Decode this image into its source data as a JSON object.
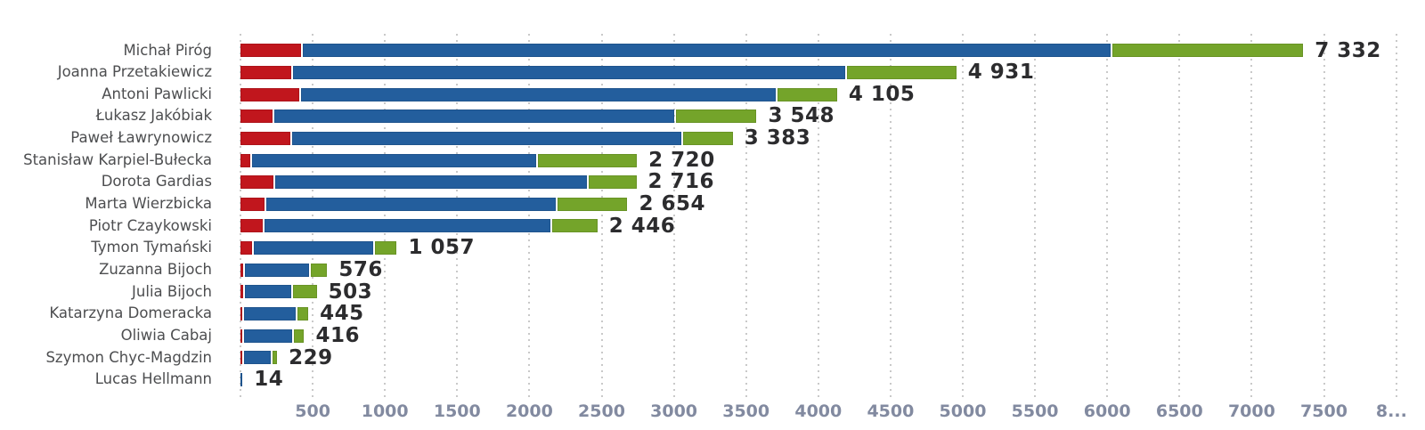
{
  "chart_data": {
    "type": "bar",
    "orientation": "horizontal",
    "stacked": true,
    "title": "",
    "xlabel": "",
    "ylabel": "",
    "xlim": [
      0,
      8000
    ],
    "grid": "dotted vertical gridlines every 500 units",
    "legend": "none",
    "series_colors": {
      "red": "#c1161d",
      "blue": "#235e9d",
      "green": "#74a42a"
    },
    "series_order": [
      "red",
      "blue",
      "green"
    ],
    "x_ticks": [
      {
        "value": 500,
        "label": "500"
      },
      {
        "value": 1000,
        "label": "1000"
      },
      {
        "value": 1500,
        "label": "1500"
      },
      {
        "value": 2000,
        "label": "2000"
      },
      {
        "value": 2500,
        "label": "2500"
      },
      {
        "value": 3000,
        "label": "3000"
      },
      {
        "value": 3500,
        "label": "3500"
      },
      {
        "value": 4000,
        "label": "4000"
      },
      {
        "value": 4500,
        "label": "4500"
      },
      {
        "value": 5000,
        "label": "5000"
      },
      {
        "value": 5500,
        "label": "5500"
      },
      {
        "value": 6000,
        "label": "6000"
      },
      {
        "value": 6500,
        "label": "6500"
      },
      {
        "value": 7000,
        "label": "7000"
      },
      {
        "value": 7500,
        "label": "7500"
      },
      {
        "value": 8000,
        "label": "8..."
      }
    ],
    "rows": [
      {
        "name": "Michał Piróg",
        "red": 420,
        "blue": 5589,
        "green": 1323,
        "total": 7332,
        "total_label": "7 332"
      },
      {
        "name": "Joanna Przetakiewicz",
        "red": 352,
        "blue": 3820,
        "green": 759,
        "total": 4931,
        "total_label": "4 931"
      },
      {
        "name": "Antoni Pawlicki",
        "red": 406,
        "blue": 3287,
        "green": 412,
        "total": 4105,
        "total_label": "4 105"
      },
      {
        "name": "Łukasz Jakóbiak",
        "red": 225,
        "blue": 2765,
        "green": 558,
        "total": 3548,
        "total_label": "3 548"
      },
      {
        "name": "Paweł Ławrynowicz",
        "red": 348,
        "blue": 2693,
        "green": 342,
        "total": 3383,
        "total_label": "3 383"
      },
      {
        "name": "Stanisław Karpiel-Bułecka",
        "red": 70,
        "blue": 1964,
        "green": 686,
        "total": 2720,
        "total_label": "2 720"
      },
      {
        "name": "Dorota Gardias",
        "red": 230,
        "blue": 2153,
        "green": 333,
        "total": 2716,
        "total_label": "2 716"
      },
      {
        "name": "Marta Wierzbicka",
        "red": 164,
        "blue": 2007,
        "green": 483,
        "total": 2654,
        "total_label": "2 654"
      },
      {
        "name": "Piotr Czaykowski",
        "red": 154,
        "blue": 1979,
        "green": 313,
        "total": 2446,
        "total_label": "2 446"
      },
      {
        "name": "Tymon Tymański",
        "red": 82,
        "blue": 827,
        "green": 148,
        "total": 1057,
        "total_label": "1 057"
      },
      {
        "name": "Zuzanna Bijoch",
        "red": 20,
        "blue": 445,
        "green": 111,
        "total": 576,
        "total_label": "576"
      },
      {
        "name": "Julia Bijoch",
        "red": 18,
        "blue": 319,
        "green": 166,
        "total": 503,
        "total_label": "503"
      },
      {
        "name": "Katarzyna Domeracka",
        "red": 15,
        "blue": 353,
        "green": 77,
        "total": 445,
        "total_label": "445"
      },
      {
        "name": "Oliwia Cabaj",
        "red": 15,
        "blue": 332,
        "green": 69,
        "total": 416,
        "total_label": "416"
      },
      {
        "name": "Szymon Chyc-Magdzin",
        "red": 10,
        "blue": 185,
        "green": 34,
        "total": 229,
        "total_label": "229"
      },
      {
        "name": "Lucas Hellmann",
        "red": 0,
        "blue": 14,
        "green": 0,
        "total": 14,
        "total_label": "14"
      }
    ]
  },
  "style_colors": {
    "grid_dots": "#c9c9c9",
    "category_text": "#4d4e50",
    "value_text": "#2c2c2e",
    "axis_text": "#828aa0",
    "background": "#ffffff"
  }
}
